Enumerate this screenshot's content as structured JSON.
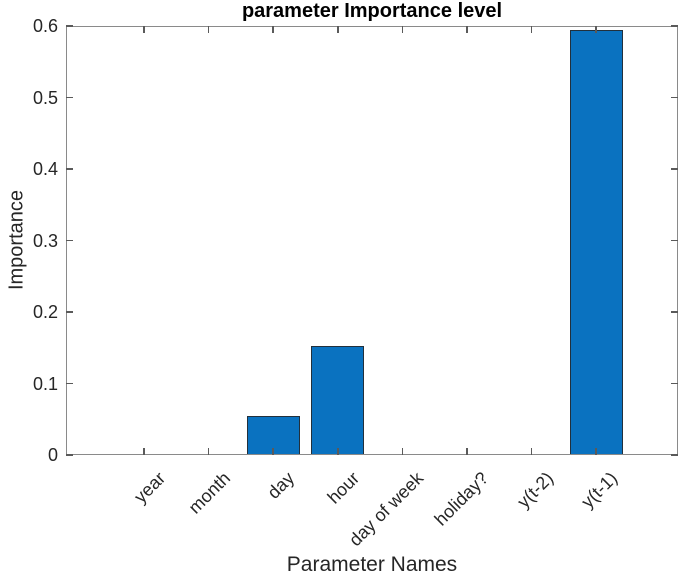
{
  "chart_data": {
    "type": "bar",
    "title": "parameter Importance level",
    "xlabel": "Parameter Names",
    "ylabel": "Importance",
    "categories": [
      "year",
      "month",
      "day",
      "hour",
      "day of week",
      "holiday?",
      "y(t-2)",
      "y(t-1)"
    ],
    "values": [
      0,
      0,
      0.055,
      0.152,
      0,
      0,
      0,
      0.595
    ],
    "ylim": [
      0,
      0.6
    ],
    "ytick_labels": [
      "0",
      "0.1",
      "0.2",
      "0.3",
      "0.4",
      "0.5",
      "0.6"
    ],
    "x_tick_rotation_deg": 45,
    "grid": false,
    "legend_position": "none",
    "colors": {
      "bar_fill": "#0a72c0",
      "bar_edge": "#22303c",
      "axis_box": "#8a8a8a",
      "tick_mark": "#5a5a5a",
      "tick_text": "#262626",
      "title_text": "#000000",
      "background": "#ffffff"
    }
  }
}
